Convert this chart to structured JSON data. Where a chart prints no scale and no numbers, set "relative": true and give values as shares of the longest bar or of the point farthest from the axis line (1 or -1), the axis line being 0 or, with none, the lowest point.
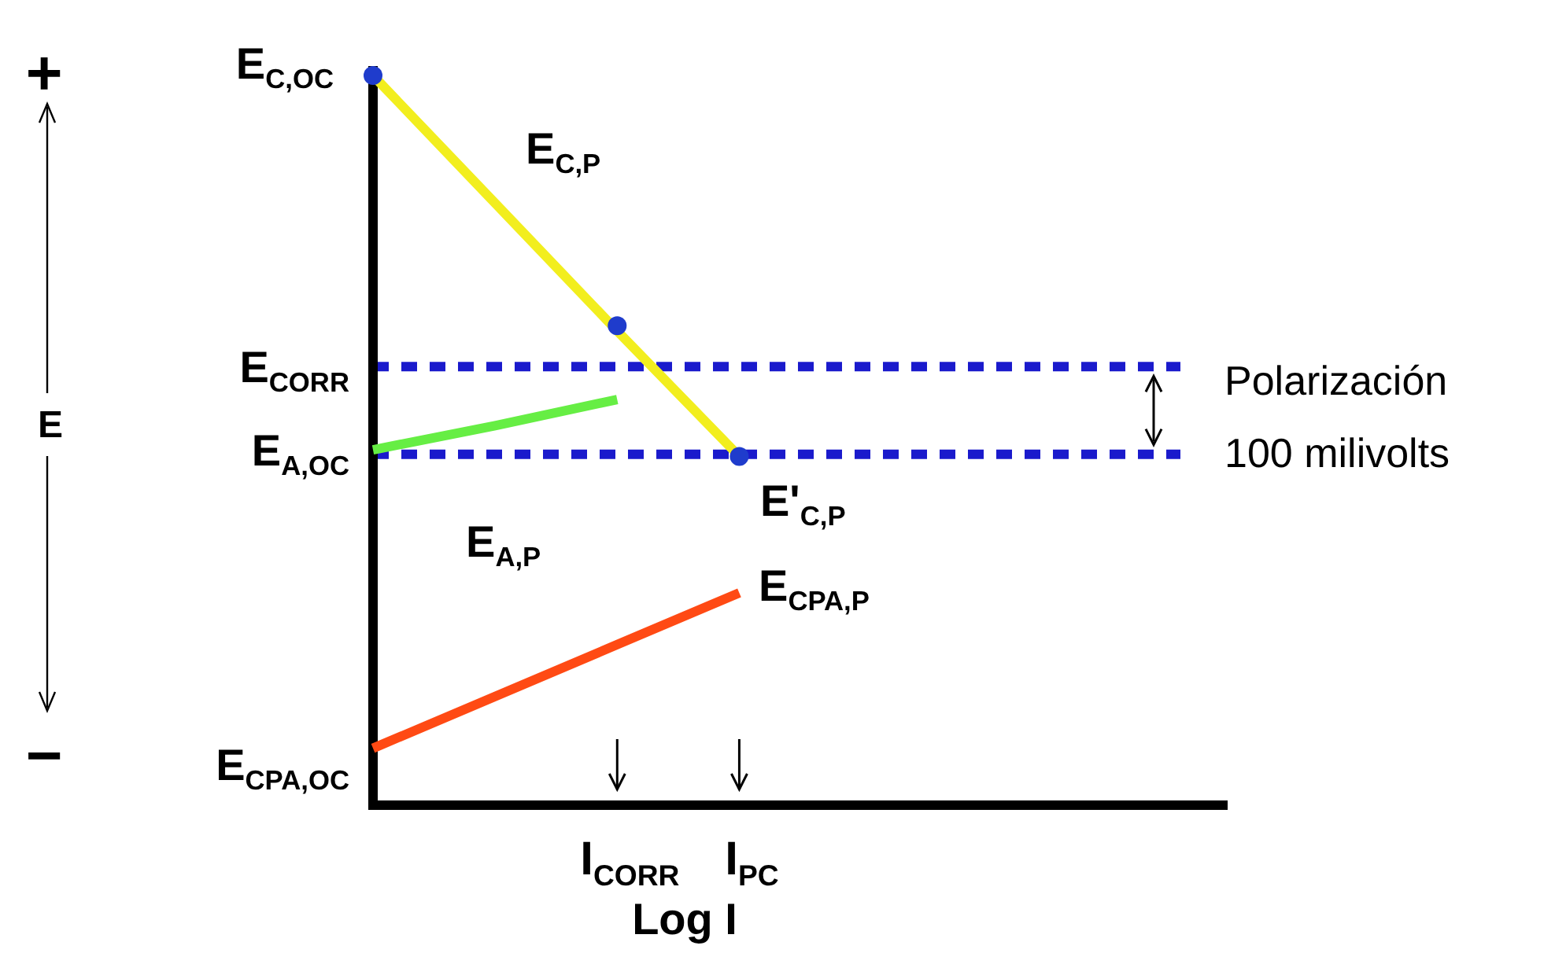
{
  "chart_data": {
    "type": "line",
    "relative": true,
    "xlabel": "Log I",
    "categories": [
      null,
      null,
      "I$_{CORR}$",
      "I$_{PC}$",
      null,
      null,
      null,
      null
    ],
    "series": [
      {
        "type": "line",
        "color": "#f2ee1e",
        "values": [
          1,
          0.825,
          0.65,
          0.478,
          null,
          null,
          null,
          null
        ]
      },
      {
        "type": "line",
        "color": "#66ee44",
        "values": [
          0.487,
          0.52,
          0.556,
          null,
          null,
          null,
          null,
          null
        ]
      },
      {
        "type": "line",
        "color": "#ff4a14",
        "values": [
          0.078,
          0.149,
          0.22,
          0.291,
          null,
          null,
          null,
          null
        ]
      },
      {
        "type": "scatter",
        "marker": "circle",
        "color": "#1f3ccc",
        "values": [
          1,
          null,
          0.657,
          0.478,
          null,
          null,
          null,
          null
        ]
      }
    ],
    "ref_lines": [
      {
        "axis": "y",
        "value": 0.601,
        "label": "Polarización",
        "color": "#1a1acc",
        "line_style": "dashed"
      },
      {
        "axis": "y",
        "value": 0.481,
        "label": "100 milivolts",
        "color": "#1a1acc",
        "line_style": "dashed"
      }
    ],
    "annotations": [
      "E$_{C,OC}$",
      "E$_{C,P}$",
      "E$_{CORR}$",
      "E$_{A,OC}$",
      "E'$_{C,P}$",
      "E$_{A,P}$",
      "E$_{CPA,P}$",
      "E$_{CPA,OC}$",
      "+",
      "−",
      "E"
    ]
  }
}
